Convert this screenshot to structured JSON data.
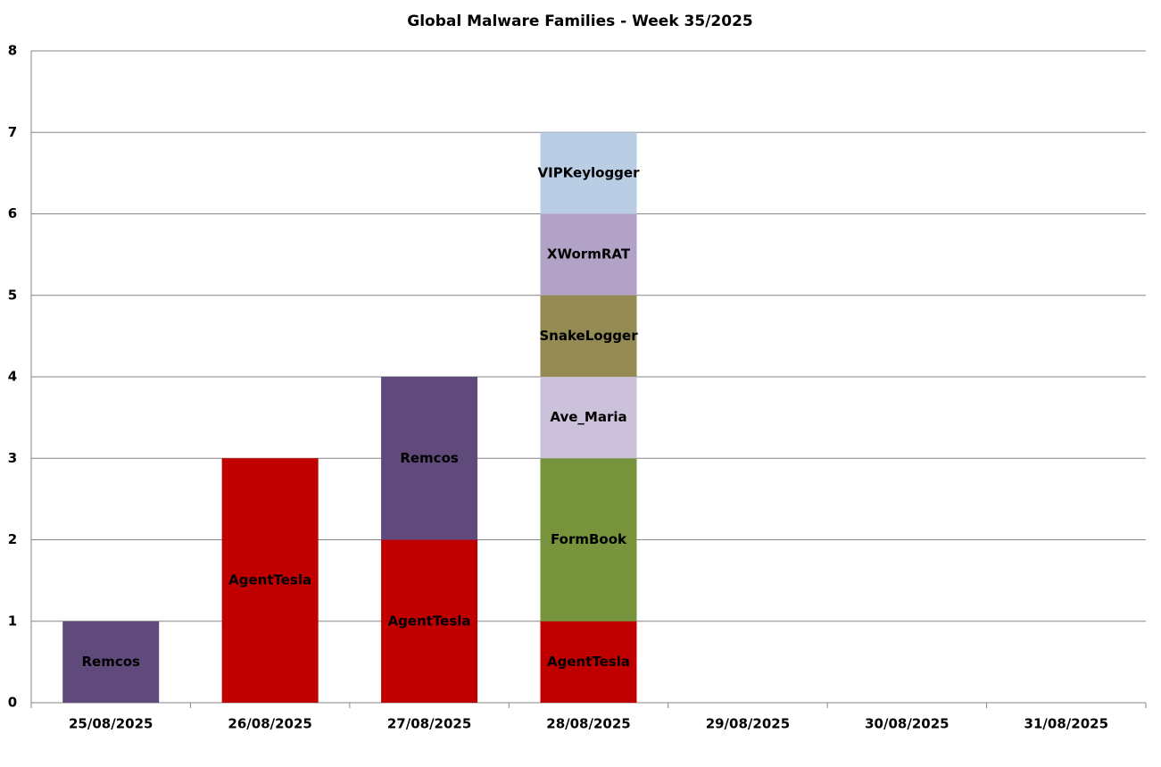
{
  "chart_data": {
    "type": "stacked_bar",
    "title": "Global Malware Families - Week 35/2025",
    "categories": [
      "25/08/2025",
      "26/08/2025",
      "27/08/2025",
      "28/08/2025",
      "29/08/2025",
      "30/08/2025",
      "31/08/2025"
    ],
    "series": [
      {
        "name": "AgentTesla",
        "color": "#c00000",
        "values": [
          0,
          3,
          2,
          1,
          0,
          0,
          0
        ]
      },
      {
        "name": "Remcos",
        "color": "#604a7b",
        "values": [
          1,
          0,
          2,
          0,
          0,
          0,
          0
        ]
      },
      {
        "name": "FormBook",
        "color": "#77933c",
        "values": [
          0,
          0,
          0,
          2,
          0,
          0,
          0
        ]
      },
      {
        "name": "Ave_Maria",
        "color": "#ccc1da",
        "values": [
          0,
          0,
          0,
          1,
          0,
          0,
          0
        ]
      },
      {
        "name": "SnakeLogger",
        "color": "#948a54",
        "values": [
          0,
          0,
          0,
          1,
          0,
          0,
          0
        ]
      },
      {
        "name": "XWormRAT",
        "color": "#b3a2c7",
        "values": [
          0,
          0,
          0,
          1,
          0,
          0,
          0
        ]
      },
      {
        "name": "VIPKeylogger",
        "color": "#b9cde5",
        "values": [
          0,
          0,
          0,
          1,
          0,
          0,
          0
        ]
      }
    ],
    "ylim": [
      0,
      8
    ],
    "yticks": [
      0,
      1,
      2,
      3,
      4,
      5,
      6,
      7,
      8
    ],
    "grid": true
  }
}
